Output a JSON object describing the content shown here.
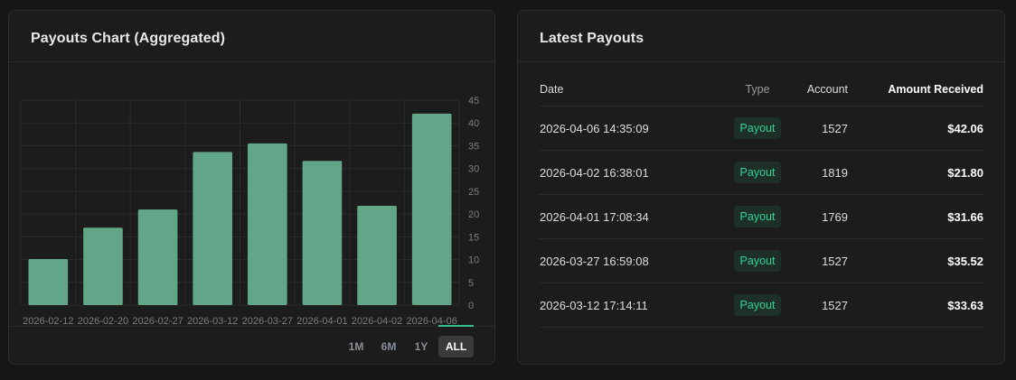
{
  "chart_card": {
    "title": "Payouts Chart (Aggregated)",
    "ranges": [
      "1M",
      "6M",
      "1Y",
      "ALL"
    ],
    "active_range": "ALL"
  },
  "chart_data": {
    "type": "bar",
    "title": "Payouts Chart (Aggregated)",
    "categories": [
      "2026-02-12",
      "2026-02-20",
      "2026-02-27",
      "2026-03-12",
      "2026-03-27",
      "2026-04-01",
      "2026-04-02",
      "2026-04-06"
    ],
    "values": [
      10.1,
      17.0,
      21.0,
      33.63,
      35.52,
      31.66,
      21.8,
      42.06
    ],
    "ylim": [
      0,
      45
    ],
    "yticks": [
      0,
      5,
      10,
      15,
      20,
      25,
      30,
      35,
      40,
      45
    ],
    "y_axis_side": "right",
    "grid": true,
    "bar_color": "#62a68a"
  },
  "payouts_card": {
    "title": "Latest Payouts",
    "columns": {
      "date": "Date",
      "type": "Type",
      "account": "Account",
      "amount": "Amount Received"
    },
    "rows": [
      {
        "date": "2026-04-06 14:35:09",
        "type": "Payout",
        "account": "1527",
        "amount": "$42.06"
      },
      {
        "date": "2026-04-02 16:38:01",
        "type": "Payout",
        "account": "1819",
        "amount": "$21.80"
      },
      {
        "date": "2026-04-01 17:08:34",
        "type": "Payout",
        "account": "1769",
        "amount": "$31.66"
      },
      {
        "date": "2026-03-27 16:59:08",
        "type": "Payout",
        "account": "1527",
        "amount": "$35.52"
      },
      {
        "date": "2026-03-12 17:14:11",
        "type": "Payout",
        "account": "1527",
        "amount": "$33.63"
      }
    ]
  },
  "colors": {
    "accent": "#33c08a",
    "badge_text": "#2ed398",
    "badge_bg": "#1d2f27",
    "bar": "#62a68a"
  }
}
